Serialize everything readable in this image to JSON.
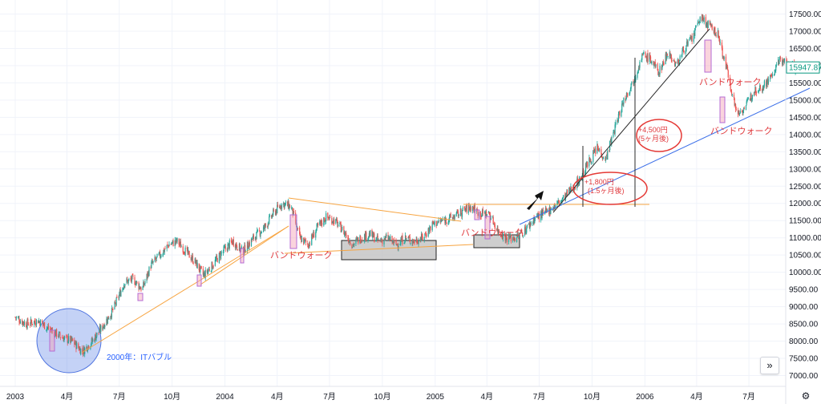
{
  "chart_data": {
    "type": "candlestick",
    "ylim": [
      6800,
      17700
    ],
    "y_ticks": [
      "17500.00",
      "17000.00",
      "16500.00",
      "16000.00",
      "15500.00",
      "15000.00",
      "14500.00",
      "14000.00",
      "13500.00",
      "13000.00",
      "12500.00",
      "12000.00",
      "11500.00",
      "11000.00",
      "10500.00",
      "10000.00",
      "9500.00",
      "9000.00",
      "8500.00",
      "8000.00",
      "7500.00",
      "7000.00"
    ],
    "x_ticks": [
      "2003",
      "4月",
      "7月",
      "10月",
      "2004",
      "4月",
      "7月",
      "10月",
      "2005",
      "4月",
      "7月",
      "10月",
      "2006",
      "4月",
      "7月"
    ],
    "x_tick_dates": [
      "2003-01",
      "2003-04",
      "2003-07",
      "2003-10",
      "2004-01",
      "2004-04",
      "2004-07",
      "2004-10",
      "2005-01",
      "2005-04",
      "2005-07",
      "2005-10",
      "2006-01",
      "2006-04",
      "2006-07"
    ],
    "last_price": "15947.87",
    "price_path": [
      [
        "2003-01-01",
        8700
      ],
      [
        "2003-01-20",
        8500
      ],
      [
        "2003-02-10",
        8600
      ],
      [
        "2003-03-05",
        8300
      ],
      [
        "2003-03-25",
        8100
      ],
      [
        "2003-04-10",
        8000
      ],
      [
        "2003-04-28",
        7700
      ],
      [
        "2003-05-15",
        8000
      ],
      [
        "2003-06-01",
        8400
      ],
      [
        "2003-06-20",
        8900
      ],
      [
        "2003-07-10",
        9700
      ],
      [
        "2003-07-25",
        9800
      ],
      [
        "2003-08-10",
        9500
      ],
      [
        "2003-08-25",
        10200
      ],
      [
        "2003-09-10",
        10500
      ],
      [
        "2003-09-25",
        10800
      ],
      [
        "2003-10-10",
        10900
      ],
      [
        "2003-10-25",
        10600
      ],
      [
        "2003-11-10",
        10300
      ],
      [
        "2003-11-25",
        9900
      ],
      [
        "2003-12-10",
        10200
      ],
      [
        "2003-12-28",
        10600
      ],
      [
        "2004-01-15",
        10900
      ],
      [
        "2004-02-01",
        10600
      ],
      [
        "2004-02-20",
        11000
      ],
      [
        "2004-03-10",
        11300
      ],
      [
        "2004-03-25",
        11700
      ],
      [
        "2004-04-10",
        12000
      ],
      [
        "2004-04-25",
        11900
      ],
      [
        "2004-05-10",
        11000
      ],
      [
        "2004-05-25",
        10800
      ],
      [
        "2004-06-10",
        11300
      ],
      [
        "2004-06-25",
        11600
      ],
      [
        "2004-07-10",
        11500
      ],
      [
        "2004-07-25",
        11200
      ],
      [
        "2004-08-10",
        10800
      ],
      [
        "2004-08-25",
        11000
      ],
      [
        "2004-09-10",
        11100
      ],
      [
        "2004-09-25",
        10900
      ],
      [
        "2004-10-10",
        11000
      ],
      [
        "2004-10-25",
        10800
      ],
      [
        "2004-11-10",
        11000
      ],
      [
        "2004-11-25",
        10900
      ],
      [
        "2004-12-10",
        11000
      ],
      [
        "2004-12-28",
        11400
      ],
      [
        "2005-01-15",
        11500
      ],
      [
        "2005-02-01",
        11600
      ],
      [
        "2005-02-20",
        11800
      ],
      [
        "2005-03-05",
        11900
      ],
      [
        "2005-03-20",
        11700
      ],
      [
        "2005-04-05",
        11700
      ],
      [
        "2005-04-20",
        11200
      ],
      [
        "2005-05-05",
        11000
      ],
      [
        "2005-05-20",
        11000
      ],
      [
        "2005-06-05",
        11200
      ],
      [
        "2005-06-25",
        11600
      ],
      [
        "2005-07-10",
        11700
      ],
      [
        "2005-07-25",
        11900
      ],
      [
        "2005-08-10",
        12100
      ],
      [
        "2005-08-25",
        12400
      ],
      [
        "2005-09-10",
        12700
      ],
      [
        "2005-09-25",
        13200
      ],
      [
        "2005-10-10",
        13600
      ],
      [
        "2005-10-25",
        13300
      ],
      [
        "2005-11-10",
        14200
      ],
      [
        "2005-11-25",
        15000
      ],
      [
        "2005-12-10",
        15500
      ],
      [
        "2005-12-28",
        16300
      ],
      [
        "2006-01-10",
        16200
      ],
      [
        "2006-01-25",
        15800
      ],
      [
        "2006-02-10",
        16400
      ],
      [
        "2006-02-25",
        16000
      ],
      [
        "2006-03-10",
        16500
      ],
      [
        "2006-03-25",
        16800
      ],
      [
        "2006-04-07",
        17400
      ],
      [
        "2006-04-20",
        17200
      ],
      [
        "2006-05-08",
        16900
      ],
      [
        "2006-05-25",
        15800
      ],
      [
        "2006-06-10",
        14600
      ],
      [
        "2006-06-25",
        14800
      ],
      [
        "2006-07-10",
        15300
      ],
      [
        "2006-07-25",
        15400
      ],
      [
        "2006-08-10",
        15700
      ],
      [
        "2006-08-25",
        16200
      ],
      [
        "2006-09-10",
        16000
      ],
      [
        "2006-09-28",
        15900
      ]
    ],
    "annotations": {
      "circle_label": "2000年：ITバブル",
      "band_walk": "バンドウォーク",
      "gain1": "+1,800円",
      "gain1_period": "(1.5ヶ月後)",
      "gain2": "+4,500円",
      "gain2_period": "(5ヶ月後)"
    },
    "colors": {
      "up": "#26a69a",
      "down": "#ef5350",
      "trend_orange": "#f7a440",
      "trend_blue": "#3a6ee8",
      "trend_black": "#2a2a2a",
      "annotation_red": "#e53935",
      "circle_fill": "#6b8fe8",
      "band_marker": "#f5a0b4"
    }
  },
  "controls": {
    "scroll_icon": "double-chevron-right-icon",
    "settings_icon": "gear-icon"
  }
}
